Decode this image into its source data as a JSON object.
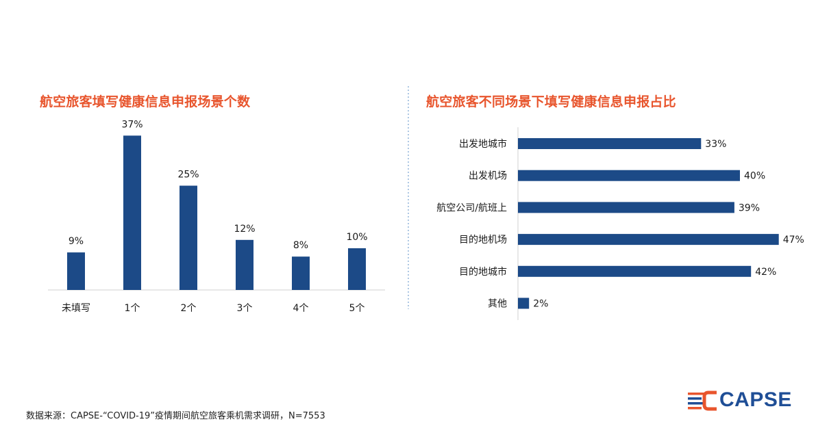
{
  "chart_data": [
    {
      "type": "bar",
      "title": "航空旅客填写健康信息申报场景个数",
      "categories": [
        "未填写",
        "1个",
        "2个",
        "3个",
        "4个",
        "5个"
      ],
      "values": [
        9,
        37,
        25,
        12,
        8,
        10
      ],
      "data_labels": [
        "9%",
        "37%",
        "25%",
        "12%",
        "8%",
        "10%"
      ],
      "unit": "%",
      "ylim": [
        0,
        40
      ],
      "grid": false,
      "color": "#1C4A87"
    },
    {
      "type": "bar",
      "orientation": "horizontal",
      "title": "航空旅客不同场景下填写健康信息申报占比",
      "categories": [
        "出发地城市",
        "出发机场",
        "航空公司/航班上",
        "目的地机场",
        "目的地城市",
        "其他"
      ],
      "values": [
        33,
        40,
        39,
        47,
        42,
        2
      ],
      "data_labels": [
        "33%",
        "40%",
        "39%",
        "47%",
        "42%",
        "2%"
      ],
      "unit": "%",
      "xlim": [
        0,
        50
      ],
      "grid": false,
      "color": "#1C4A87"
    }
  ],
  "footer": {
    "source": "数据来源：CAPSE-“COVID-19”疫情期间航空旅客乘机需求调研，N=7553"
  },
  "logo": {
    "text": "CAPSE",
    "colors": {
      "accent": "#E8552D",
      "brand": "#1F4E96"
    }
  }
}
